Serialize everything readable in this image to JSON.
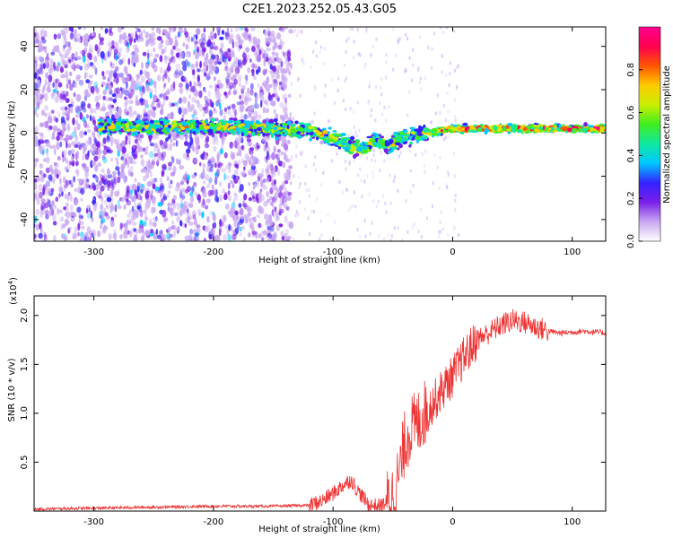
{
  "title": "C2E1.2023.252.05.43.G05",
  "chart_data": [
    {
      "type": "heatmap",
      "xlabel": "Height of straight line (km)",
      "ylabel": "Frequency (Hz)",
      "xlim": [
        -350,
        128
      ],
      "ylim": [
        -50,
        49
      ],
      "xticks": [
        -300,
        -200,
        -100,
        0,
        100
      ],
      "yticks": [
        -40,
        -20,
        0,
        20,
        40
      ],
      "colorbar": {
        "label": "Normalized spectral amplitude",
        "range": [
          0,
          1
        ],
        "ticks": [
          0.0,
          0.2,
          0.4,
          0.6,
          0.8
        ],
        "colormap": [
          "#ffffff",
          "#c9a8f2",
          "#7a1fe8",
          "#3322ff",
          "#00c8ff",
          "#10e8a0",
          "#40ee20",
          "#c8ee00",
          "#ffcc00",
          "#ff5500",
          "#ff0050",
          "#ff0090"
        ]
      },
      "ridge": {
        "x": [
          -295,
          -250,
          -200,
          -150,
          -120,
          -100,
          -85,
          -75,
          -65,
          -55,
          -45,
          -35,
          -25,
          -10,
          0,
          50,
          128
        ],
        "y": [
          3,
          2.5,
          3,
          2,
          1,
          -2,
          -6,
          -8,
          -3,
          -6,
          -3,
          -1,
          0.5,
          1,
          2,
          2,
          2
        ]
      }
    },
    {
      "type": "line",
      "xlabel": "Height of straight line (km)",
      "ylabel": "SNR (10 * v/v)",
      "y_multiplier": "(x10",
      "y_multiplier_exp": "4",
      "y_multiplier_close": ")",
      "xlim": [
        -350,
        128
      ],
      "ylim": [
        0,
        2.2
      ],
      "xticks": [
        -300,
        -200,
        -100,
        0,
        100
      ],
      "yticks": [
        0.5,
        1.0,
        1.5,
        2.0
      ],
      "ytick_labels": [
        "0.5",
        "1.0",
        "1.5",
        "2.0"
      ],
      "series": [
        {
          "color": "#ee3333",
          "x": [
            -350,
            -300,
            -250,
            -200,
            -150,
            -120,
            -110,
            -100,
            -90,
            -85,
            -80,
            -75,
            -70,
            -60,
            -50,
            -45,
            -40,
            -35,
            -30,
            -25,
            -20,
            -10,
            0,
            10,
            20,
            30,
            40,
            50,
            60,
            70,
            80,
            90,
            100,
            110,
            120,
            128
          ],
          "y": [
            0.02,
            0.03,
            0.04,
            0.05,
            0.05,
            0.06,
            0.1,
            0.18,
            0.28,
            0.32,
            0.22,
            0.14,
            0.06,
            0.05,
            0.15,
            0.35,
            0.7,
            0.85,
            0.88,
            0.98,
            1.05,
            1.22,
            1.38,
            1.58,
            1.75,
            1.82,
            1.9,
            1.95,
            1.93,
            1.88,
            1.84,
            1.82,
            1.83,
            1.84,
            1.83,
            1.82
          ]
        }
      ]
    }
  ]
}
